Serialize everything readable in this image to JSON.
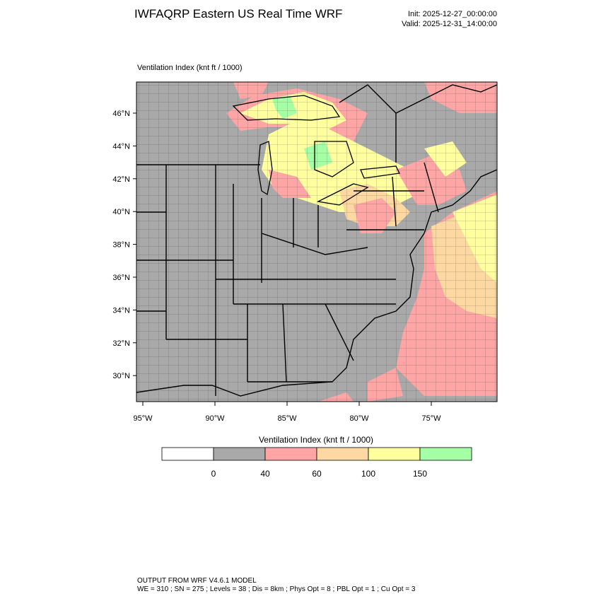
{
  "header": {
    "title": "IWFAQRP Eastern US Real Time WRF",
    "init": "Init: 2025-12-27_00:00:00",
    "valid": "Valid: 2025-12-31_14:00:00"
  },
  "map": {
    "field_label": "Ventilation Index   (knt ft / 1000)",
    "lat_ticks": [
      "46°N",
      "44°N",
      "42°N",
      "40°N",
      "38°N",
      "36°N",
      "34°N",
      "32°N",
      "30°N"
    ],
    "lon_ticks": [
      "95°W",
      "90°W",
      "85°W",
      "80°W",
      "75°W"
    ]
  },
  "colorbar": {
    "title": "Ventilation Index  (knt ft / 1000)",
    "boxes": [
      {
        "color": "#ffffff"
      },
      {
        "color": "#a9a9a9"
      },
      {
        "color": "#ffa5a5"
      },
      {
        "color": "#fdd8a0"
      },
      {
        "color": "#ffff9e"
      },
      {
        "color": "#a5ffa5"
      }
    ],
    "labels": [
      "0",
      "40",
      "60",
      "100",
      "150"
    ]
  },
  "footer": {
    "line1": "OUTPUT FROM WRF V4.6.1 MODEL",
    "line2": "WE = 310 ; SN = 275 ; Levels = 38 ; Dis = 8km ; Phys Opt = 8 ; PBL Opt = 1 ; Cu Opt = 3"
  },
  "colors": {
    "land_gray": "#a9a9a9",
    "pink": "#ffa5a5",
    "tan": "#fdd8a0",
    "yellow": "#ffff9e",
    "green": "#a5ffa5"
  }
}
